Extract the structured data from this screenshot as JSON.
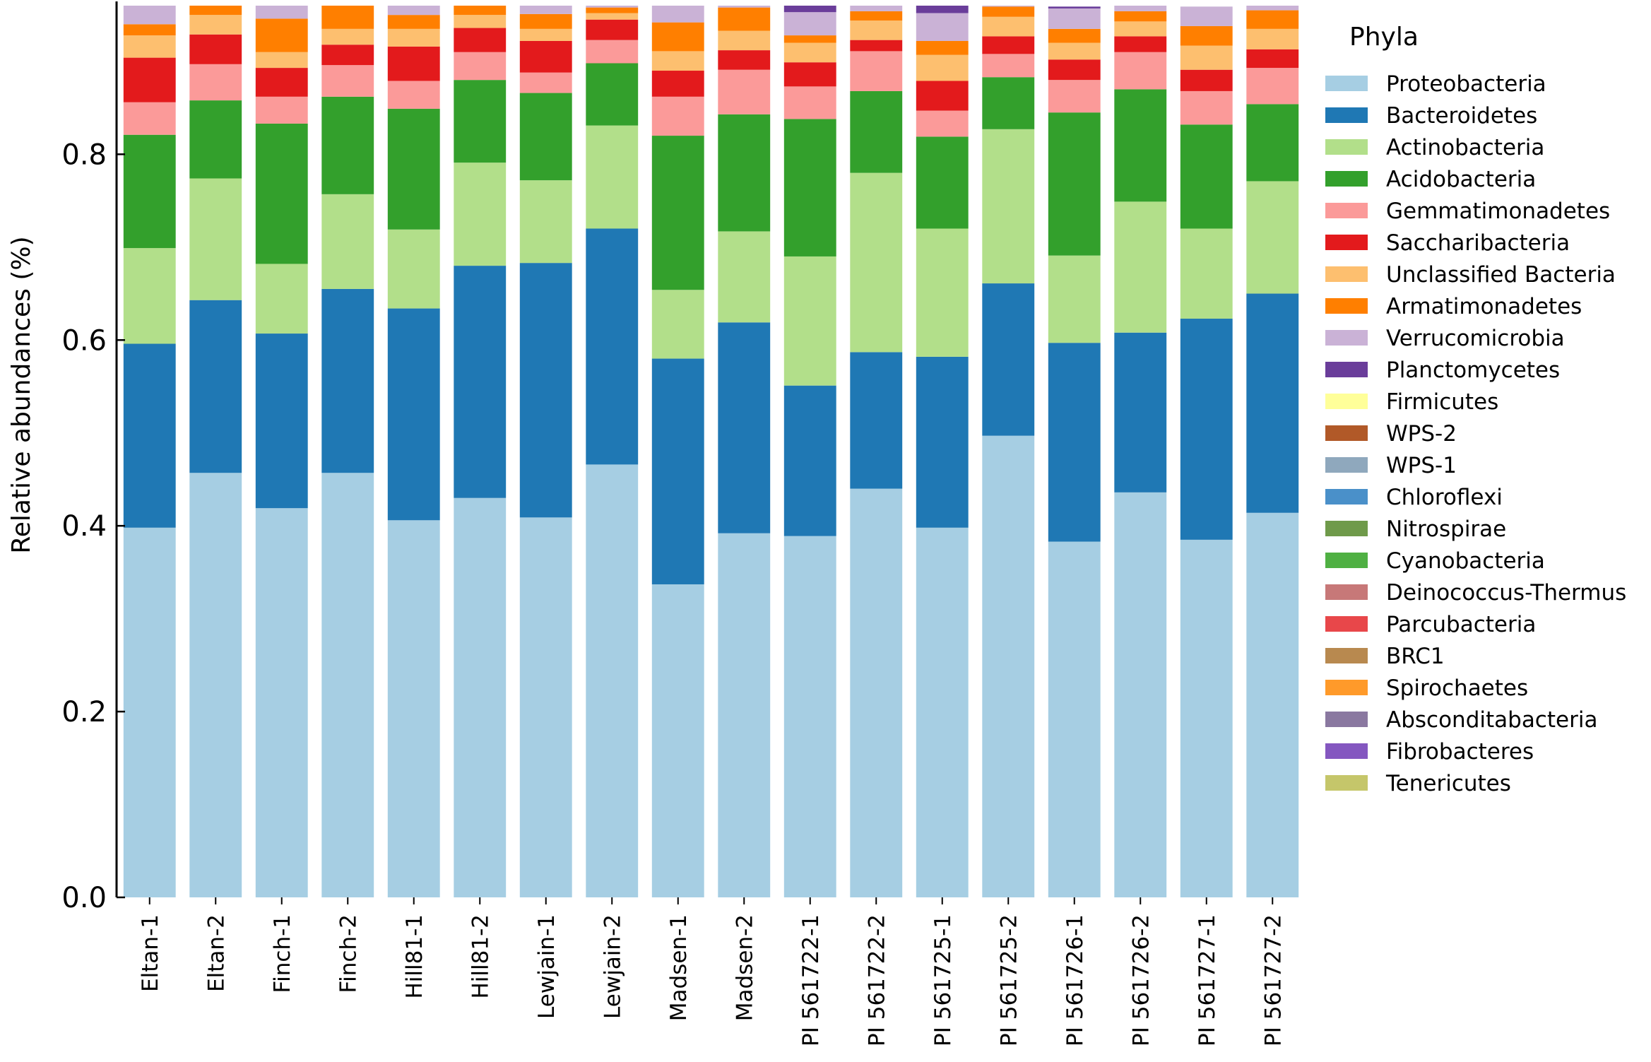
{
  "chart_data": {
    "type": "bar",
    "stacked": true,
    "title": "",
    "xlabel": "",
    "ylabel": "Relative abundances (%)",
    "ylim": [
      0,
      0.96
    ],
    "yticks": [
      "0.0",
      "0.2",
      "0.4",
      "0.6",
      "0.8"
    ],
    "yticks_values": [
      0.0,
      0.2,
      0.4,
      0.6,
      0.8
    ],
    "grid": false,
    "legend_title": "Phyla",
    "legend_position": "right",
    "categories": [
      "Eltan-1",
      "Eltan-2",
      "Finch-1",
      "Finch-2",
      "Hill81-1",
      "Hill81-2",
      "Lewjain-1",
      "Lewjain-2",
      "Madsen-1",
      "Madsen-2",
      "PI 561722-1",
      "PI 561722-2",
      "PI 561725-1",
      "PI 561725-2",
      "PI 561726-1",
      "PI 561726-2",
      "PI 561727-1",
      "PI 561727-2"
    ],
    "series": [
      {
        "name": "Proteobacteria",
        "color": "#a6cee3",
        "values": [
          0.398,
          0.457,
          0.419,
          0.457,
          0.406,
          0.43,
          0.409,
          0.466,
          0.337,
          0.392,
          0.389,
          0.44,
          0.398,
          0.497,
          0.383,
          0.436,
          0.385,
          0.414
        ]
      },
      {
        "name": "Bacteroidetes",
        "color": "#1f78b4",
        "values": [
          0.198,
          0.186,
          0.188,
          0.198,
          0.228,
          0.25,
          0.274,
          0.254,
          0.243,
          0.227,
          0.162,
          0.147,
          0.184,
          0.164,
          0.214,
          0.172,
          0.238,
          0.236
        ]
      },
      {
        "name": "Actinobacteria",
        "color": "#b2df8a",
        "values": [
          0.103,
          0.131,
          0.075,
          0.102,
          0.085,
          0.111,
          0.089,
          0.111,
          0.074,
          0.098,
          0.139,
          0.193,
          0.138,
          0.166,
          0.094,
          0.141,
          0.097,
          0.121
        ]
      },
      {
        "name": "Acidobacteria",
        "color": "#33a02c",
        "values": [
          0.122,
          0.084,
          0.151,
          0.105,
          0.13,
          0.089,
          0.094,
          0.067,
          0.166,
          0.126,
          0.148,
          0.088,
          0.099,
          0.056,
          0.154,
          0.121,
          0.112,
          0.083
        ]
      },
      {
        "name": "Gemmatimonadetes",
        "color": "#fb9a99",
        "values": [
          0.035,
          0.039,
          0.029,
          0.034,
          0.03,
          0.03,
          0.022,
          0.025,
          0.042,
          0.048,
          0.035,
          0.043,
          0.028,
          0.025,
          0.035,
          0.04,
          0.036,
          0.039
        ]
      },
      {
        "name": "Saccharibacteria",
        "color": "#e31a1c",
        "values": [
          0.048,
          0.032,
          0.031,
          0.022,
          0.037,
          0.026,
          0.034,
          0.022,
          0.028,
          0.021,
          0.026,
          0.012,
          0.032,
          0.019,
          0.022,
          0.017,
          0.023,
          0.02
        ]
      },
      {
        "name": "Unclassified Bacteria",
        "color": "#fdbf6f",
        "values": [
          0.024,
          0.021,
          0.017,
          0.017,
          0.019,
          0.014,
          0.013,
          0.007,
          0.021,
          0.021,
          0.021,
          0.021,
          0.028,
          0.021,
          0.018,
          0.016,
          0.026,
          0.022
        ]
      },
      {
        "name": "Armatimonadetes",
        "color": "#ff7f00",
        "values": [
          0.012,
          0.011,
          0.036,
          0.028,
          0.015,
          0.011,
          0.016,
          0.006,
          0.031,
          0.025,
          0.008,
          0.01,
          0.015,
          0.011,
          0.015,
          0.011,
          0.021,
          0.02
        ]
      },
      {
        "name": "Verrucomicrobia",
        "color": "#cab2d6",
        "values": [
          0.027,
          0.008,
          0.016,
          0.002,
          0.016,
          0.002,
          0.012,
          0.003,
          0.02,
          0.005,
          0.025,
          0.012,
          0.03,
          0.008,
          0.022,
          0.01,
          0.021,
          0.008
        ]
      },
      {
        "name": "Planctomycetes",
        "color": "#6a3d9a",
        "values": [
          0,
          0,
          0,
          0,
          0,
          0,
          0,
          0,
          0,
          0,
          0.008,
          0,
          0.016,
          0,
          0.002,
          0,
          0,
          0
        ]
      },
      {
        "name": "Firmicutes",
        "color": "#ffff99",
        "values": [
          0,
          0,
          0,
          0,
          0,
          0,
          0,
          0,
          0,
          0,
          0,
          0,
          0,
          0,
          0,
          0,
          0,
          0
        ]
      },
      {
        "name": "WPS-2",
        "color": "#b15928",
        "values": [
          0,
          0,
          0,
          0,
          0,
          0,
          0,
          0,
          0,
          0,
          0,
          0,
          0,
          0,
          0,
          0,
          0,
          0
        ]
      },
      {
        "name": "WPS-1",
        "color": "#8fa8bd",
        "values": [
          0,
          0,
          0,
          0,
          0,
          0,
          0,
          0,
          0,
          0,
          0,
          0,
          0,
          0,
          0,
          0,
          0,
          0
        ]
      },
      {
        "name": "Chloroflexi",
        "color": "#4a90c9",
        "values": [
          0,
          0,
          0,
          0,
          0,
          0,
          0,
          0,
          0,
          0,
          0,
          0,
          0,
          0,
          0,
          0,
          0,
          0
        ]
      },
      {
        "name": "Nitrospirae",
        "color": "#6f9a4a",
        "values": [
          0,
          0,
          0,
          0,
          0,
          0,
          0,
          0,
          0,
          0,
          0,
          0,
          0,
          0,
          0,
          0,
          0,
          0
        ]
      },
      {
        "name": "Cyanobacteria",
        "color": "#4fb043",
        "values": [
          0,
          0,
          0,
          0,
          0,
          0,
          0,
          0,
          0,
          0,
          0,
          0,
          0,
          0,
          0,
          0,
          0,
          0
        ]
      },
      {
        "name": "Deinococcus-Thermus",
        "color": "#c77878",
        "values": [
          0,
          0,
          0,
          0,
          0,
          0,
          0,
          0,
          0,
          0,
          0,
          0,
          0,
          0,
          0,
          0,
          0,
          0
        ]
      },
      {
        "name": "Parcubacteria",
        "color": "#e8474a",
        "values": [
          0,
          0,
          0,
          0,
          0,
          0,
          0,
          0,
          0,
          0,
          0,
          0,
          0,
          0,
          0,
          0,
          0,
          0
        ]
      },
      {
        "name": "BRC1",
        "color": "#b8894f",
        "values": [
          0,
          0,
          0,
          0,
          0,
          0,
          0,
          0,
          0,
          0,
          0,
          0,
          0,
          0,
          0,
          0,
          0,
          0
        ]
      },
      {
        "name": "Spirochaetes",
        "color": "#ff9a2a",
        "values": [
          0,
          0,
          0,
          0,
          0,
          0,
          0,
          0,
          0,
          0,
          0,
          0,
          0,
          0,
          0,
          0,
          0,
          0
        ]
      },
      {
        "name": "Absconditabacteria",
        "color": "#8a78a0",
        "values": [
          0,
          0,
          0,
          0,
          0,
          0,
          0,
          0,
          0,
          0,
          0,
          0,
          0,
          0,
          0,
          0,
          0,
          0
        ]
      },
      {
        "name": "Fibrobacteres",
        "color": "#8457c0",
        "values": [
          0,
          0,
          0,
          0,
          0,
          0,
          0,
          0,
          0,
          0,
          0,
          0,
          0,
          0,
          0,
          0,
          0,
          0
        ]
      },
      {
        "name": "Tenericutes",
        "color": "#c5c66a",
        "values": [
          0,
          0,
          0,
          0,
          0,
          0,
          0,
          0,
          0,
          0,
          0,
          0,
          0,
          0,
          0,
          0,
          0,
          0
        ]
      }
    ]
  }
}
